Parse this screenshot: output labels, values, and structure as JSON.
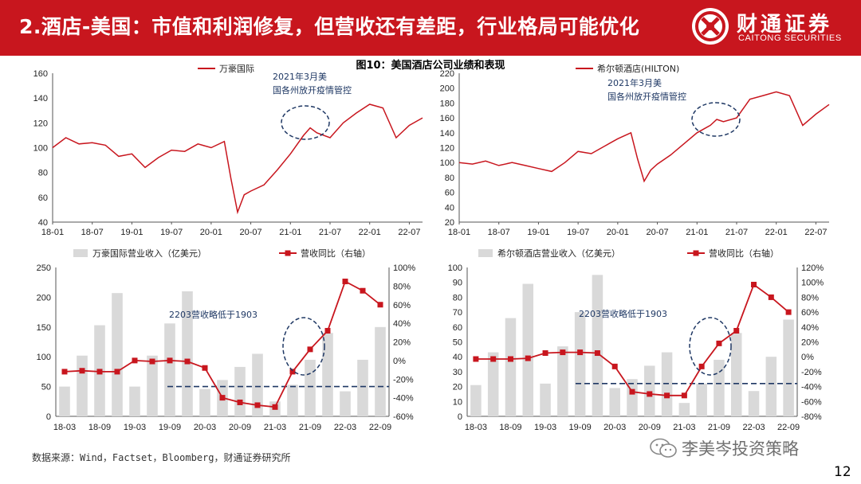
{
  "header": {
    "title": "2.酒店-美国：市值和利润修复，但营收还有差距，行业格局可能优化"
  },
  "logo": {
    "cn": "财通证券",
    "en": "CAITONG SECURITIES"
  },
  "figure_title": "图10：美国酒店公司业绩和表现",
  "source": "数据来源：Wind，Factset，Bloomberg，财通证券研究所",
  "watermark": "李美岑投资策略",
  "page_number": "12",
  "colors": {
    "header_red": "#c8161e",
    "line_red": "#c8161e",
    "bar_gray": "#d9d9d9",
    "annot_blue": "#1f3864"
  },
  "chart_data": [
    {
      "type": "line",
      "legend": [
        "万豪国际"
      ],
      "ylim": [
        40,
        160
      ],
      "yticks": [
        40,
        60,
        80,
        100,
        120,
        140,
        160
      ],
      "xticks": [
        "18-01",
        "18-07",
        "19-01",
        "19-07",
        "20-01",
        "20-07",
        "21-01",
        "21-07",
        "22-01",
        "22-07"
      ],
      "annotation": "2021年3月美国各州放开疫情管控",
      "series": [
        {
          "name": "万豪国际",
          "x": [
            0,
            2,
            4,
            6,
            8,
            10,
            12,
            14,
            16,
            18,
            20,
            22,
            24,
            26,
            27,
            28,
            29,
            30,
            32,
            34,
            36,
            38,
            39,
            40,
            42,
            44,
            46,
            48,
            50,
            52,
            54,
            56
          ],
          "values": [
            100,
            108,
            103,
            104,
            102,
            93,
            95,
            84,
            92,
            98,
            97,
            103,
            100,
            105,
            75,
            48,
            62,
            65,
            70,
            82,
            95,
            110,
            116,
            112,
            108,
            120,
            128,
            135,
            132,
            108,
            118,
            124
          ]
        }
      ]
    },
    {
      "type": "line",
      "legend": [
        "希尔顿酒店(HILTON)"
      ],
      "ylim": [
        20,
        220
      ],
      "yticks": [
        20,
        40,
        60,
        80,
        100,
        120,
        140,
        160,
        180,
        200,
        220
      ],
      "xticks": [
        "18-01",
        "18-07",
        "19-01",
        "19-07",
        "20-01",
        "20-07",
        "21-01",
        "21-07",
        "22-01",
        "22-07"
      ],
      "annotation": "2021年3月美国各州放开疫情管控",
      "series": [
        {
          "name": "希尔顿酒店(HILTON)",
          "x": [
            0,
            2,
            4,
            6,
            8,
            10,
            12,
            14,
            16,
            18,
            20,
            22,
            24,
            26,
            27,
            28,
            29,
            30,
            32,
            34,
            36,
            38,
            39,
            40,
            42,
            44,
            46,
            48,
            50,
            52,
            54,
            56
          ],
          "values": [
            100,
            98,
            102,
            96,
            100,
            96,
            92,
            88,
            100,
            115,
            112,
            122,
            132,
            140,
            105,
            75,
            90,
            98,
            110,
            125,
            140,
            150,
            158,
            155,
            160,
            185,
            190,
            195,
            190,
            150,
            165,
            178
          ]
        }
      ]
    },
    {
      "type": "bar+line",
      "legend": [
        "万豪国际营业收入（亿美元）",
        "营收同比（右轴）"
      ],
      "categories": [
        "18-03",
        "18-06",
        "18-09",
        "18-12",
        "19-03",
        "19-06",
        "19-09",
        "19-12",
        "20-03",
        "20-06",
        "20-09",
        "20-12",
        "21-03",
        "21-06",
        "21-09",
        "21-12",
        "22-03",
        "22-06",
        "22-09"
      ],
      "xticks": [
        "18-03",
        "18-09",
        "19-03",
        "19-09",
        "20-03",
        "20-09",
        "21-03",
        "21-09",
        "22-03",
        "22-09"
      ],
      "ylim": [
        0,
        250
      ],
      "yticks": [
        0,
        50,
        100,
        150,
        200,
        250
      ],
      "y2lim": [
        -60,
        100
      ],
      "y2ticks": [
        "-60%",
        "-40%",
        "-20%",
        "0%",
        "20%",
        "40%",
        "60%",
        "80%",
        "100%"
      ],
      "annotation": "2203营收略低于1903",
      "bars": [
        50,
        102,
        153,
        207,
        50,
        102,
        156,
        210,
        46,
        61,
        83,
        105,
        25,
        53,
        95,
        140,
        42,
        95,
        150
      ],
      "line": [
        -12,
        -11,
        -12,
        -12,
        0,
        -1,
        0,
        -1,
        -8,
        -40,
        -45,
        -48,
        -50,
        -12,
        12,
        32,
        85,
        75,
        60
      ]
    },
    {
      "type": "bar+line",
      "legend": [
        "希尔顿酒店营业收入（亿美元）",
        "营收同比（右轴）"
      ],
      "categories": [
        "18-03",
        "18-06",
        "18-09",
        "18-12",
        "19-03",
        "19-06",
        "19-09",
        "19-12",
        "20-03",
        "20-06",
        "20-09",
        "20-12",
        "21-03",
        "21-06",
        "21-09",
        "21-12",
        "22-03",
        "22-06",
        "22-09"
      ],
      "xticks": [
        "18-03",
        "18-09",
        "19-03",
        "19-09",
        "20-03",
        "20-09",
        "21-03",
        "21-09",
        "22-03",
        "22-09"
      ],
      "ylim": [
        0,
        100
      ],
      "yticks": [
        0,
        10,
        20,
        30,
        40,
        50,
        60,
        70,
        80,
        90,
        100
      ],
      "y2lim": [
        -80,
        120
      ],
      "y2ticks": [
        "-80%",
        "-60%",
        "-40%",
        "-20%",
        "0%",
        "20%",
        "40%",
        "60%",
        "80%",
        "100%",
        "120%"
      ],
      "annotation": "2203营收略低于1903",
      "bars": [
        21,
        43,
        66,
        89,
        22,
        47,
        70,
        95,
        19,
        25,
        34,
        43,
        9,
        22,
        38,
        56,
        17,
        40,
        65
      ],
      "line": [
        -3,
        -3,
        -3,
        -2,
        5,
        6,
        6,
        5,
        -13,
        -47,
        -50,
        -52,
        -52,
        -13,
        18,
        35,
        97,
        80,
        60
      ]
    }
  ]
}
